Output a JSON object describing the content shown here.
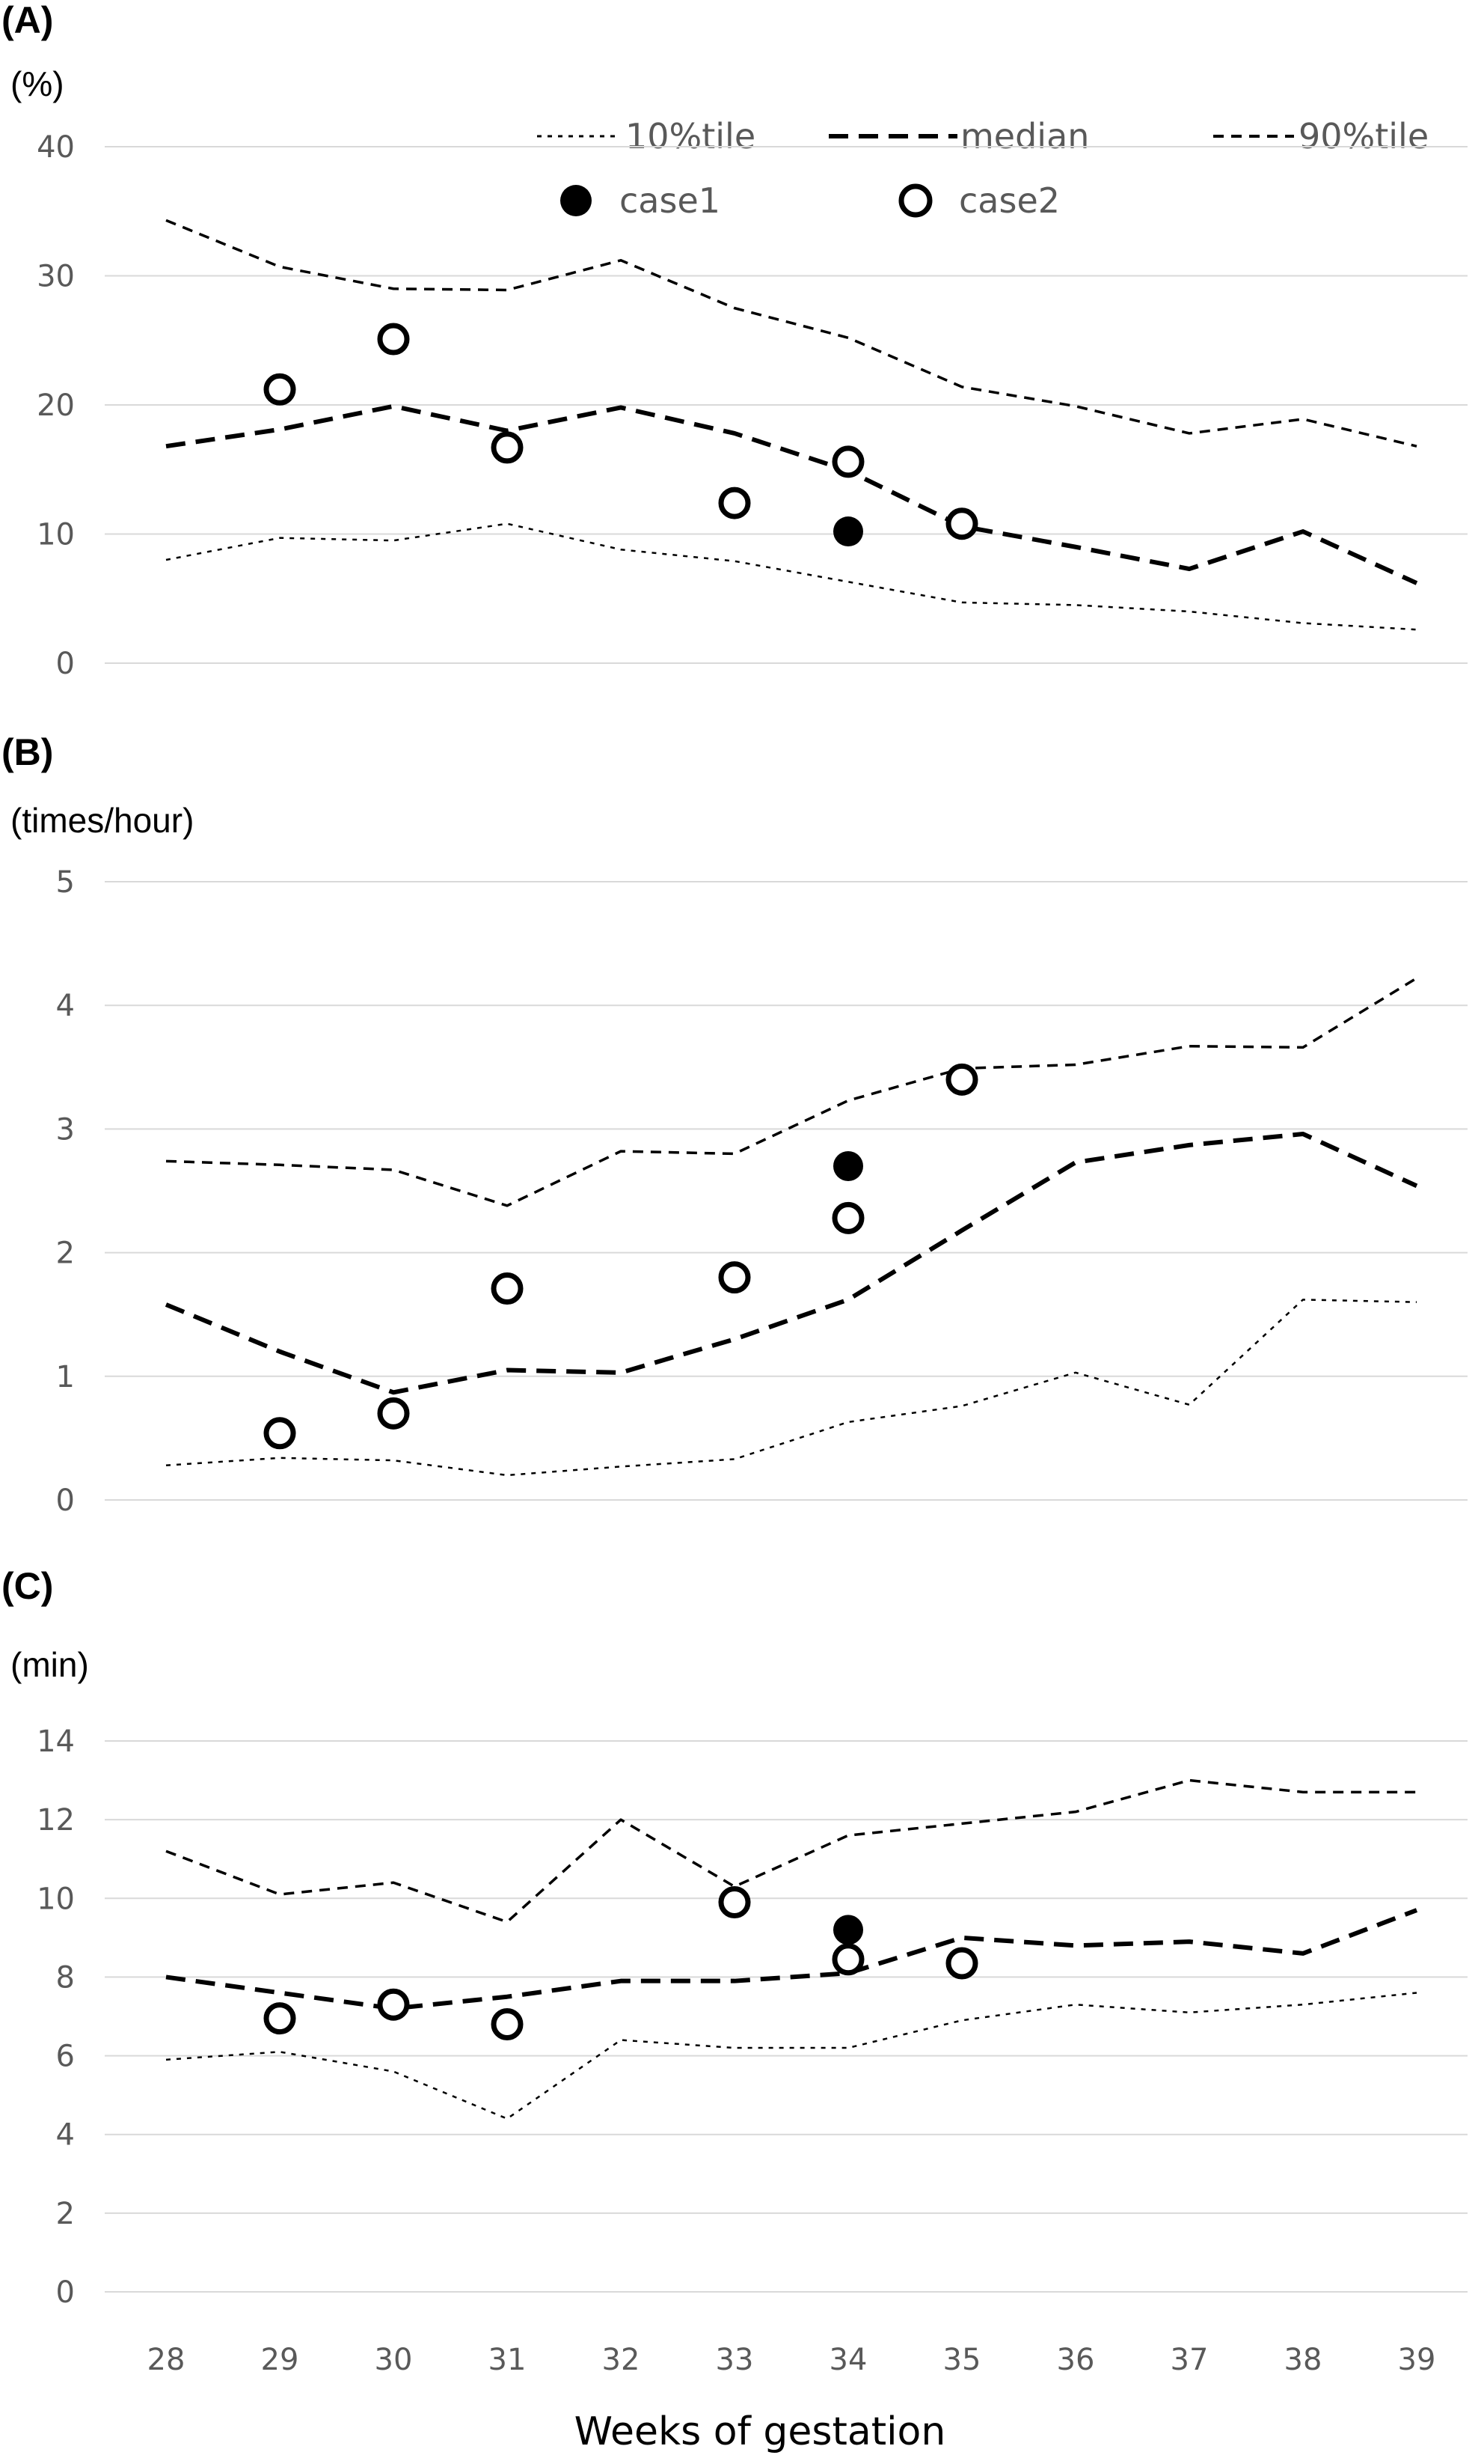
{
  "xaxis_title": "Weeks of gestation",
  "colors": {
    "line": "#000000",
    "grid": "#d9d9d9",
    "tick_text": "#595959"
  },
  "legend": {
    "p10": "10%tile",
    "median": "median",
    "p90": "90%tile",
    "case1": "case1",
    "case2": "case2"
  },
  "chart_data": [
    {
      "type": "line",
      "panel": "(A)",
      "ylabel": "(%)",
      "xlabel": "Weeks of gestation",
      "ylim": [
        0,
        40
      ],
      "yticks": [
        0,
        10,
        20,
        30,
        40
      ],
      "categories": [
        "28",
        "29",
        "30",
        "31",
        "32",
        "33",
        "34",
        "35",
        "36",
        "37",
        "38",
        "39"
      ],
      "series": [
        {
          "name": "10%tile",
          "values": [
            8,
            9.7,
            9.5,
            10.8,
            8.8,
            7.9,
            6.3,
            4.7,
            4.5,
            4,
            3.1,
            2.6
          ]
        },
        {
          "name": "median",
          "values": [
            16.8,
            18.1,
            19.9,
            18,
            19.8,
            17.8,
            14.9,
            10.6,
            9,
            7.3,
            10.2,
            6.2
          ]
        },
        {
          "name": "90%tile",
          "values": [
            34.3,
            30.7,
            29,
            28.9,
            31.2,
            27.5,
            25.2,
            21.4,
            19.9,
            17.8,
            18.9,
            16.8
          ]
        }
      ],
      "points": [
        {
          "name": "case1",
          "x": 34,
          "y": 10.2
        },
        {
          "name": "case2",
          "x": 29,
          "y": 21.2
        },
        {
          "name": "case2",
          "x": 30,
          "y": 25.1
        },
        {
          "name": "case2",
          "x": 31,
          "y": 16.7
        },
        {
          "name": "case2",
          "x": 33,
          "y": 12.4
        },
        {
          "name": "case2",
          "x": 34,
          "y": 15.6
        },
        {
          "name": "case2",
          "x": 35,
          "y": 10.8
        }
      ]
    },
    {
      "type": "line",
      "panel": "(B)",
      "ylabel": "(times/hour)",
      "xlabel": "Weeks of gestation",
      "ylim": [
        0,
        5
      ],
      "yticks": [
        0,
        1,
        2,
        3,
        4,
        5
      ],
      "categories": [
        "28",
        "29",
        "30",
        "31",
        "32",
        "33",
        "34",
        "35",
        "36",
        "37",
        "38",
        "39"
      ],
      "series": [
        {
          "name": "10%tile",
          "values": [
            0.28,
            0.34,
            0.32,
            0.2,
            0.27,
            0.33,
            0.63,
            0.76,
            1.03,
            0.77,
            1.62,
            1.6
          ]
        },
        {
          "name": "median",
          "values": [
            1.58,
            1.2,
            0.87,
            1.05,
            1.03,
            1.3,
            1.62,
            2.18,
            2.73,
            2.87,
            2.96,
            2.54
          ]
        },
        {
          "name": "90%tile",
          "values": [
            2.74,
            2.71,
            2.67,
            2.38,
            2.82,
            2.8,
            3.23,
            3.49,
            3.52,
            3.67,
            3.66,
            4.22
          ]
        }
      ],
      "points": [
        {
          "name": "case1",
          "x": 34,
          "y": 2.7
        },
        {
          "name": "case2",
          "x": 29,
          "y": 0.54
        },
        {
          "name": "case2",
          "x": 30,
          "y": 0.7
        },
        {
          "name": "case2",
          "x": 31,
          "y": 1.71
        },
        {
          "name": "case2",
          "x": 33,
          "y": 1.8
        },
        {
          "name": "case2",
          "x": 34,
          "y": 2.28
        },
        {
          "name": "case2",
          "x": 35,
          "y": 3.4
        }
      ]
    },
    {
      "type": "line",
      "panel": "(C)",
      "ylabel": "(min)",
      "xlabel": "Weeks of gestation",
      "ylim": [
        0,
        14
      ],
      "yticks": [
        0,
        2,
        4,
        6,
        8,
        10,
        12,
        14
      ],
      "categories": [
        "28",
        "29",
        "30",
        "31",
        "32",
        "33",
        "34",
        "35",
        "36",
        "37",
        "38",
        "39"
      ],
      "series": [
        {
          "name": "10%tile",
          "values": [
            5.9,
            6.1,
            5.6,
            4.4,
            6.4,
            6.2,
            6.2,
            6.9,
            7.3,
            7.1,
            7.3,
            7.6
          ]
        },
        {
          "name": "median",
          "values": [
            8,
            7.6,
            7.2,
            7.5,
            7.9,
            7.9,
            8.1,
            9,
            8.8,
            8.9,
            8.6,
            9.7
          ]
        },
        {
          "name": "90%tile",
          "values": [
            11.2,
            10.1,
            10.4,
            9.4,
            12,
            10.3,
            11.6,
            11.9,
            12.2,
            13,
            12.7,
            12.7
          ]
        }
      ],
      "points": [
        {
          "name": "case1",
          "x": 34,
          "y": 9.2
        },
        {
          "name": "case2",
          "x": 29,
          "y": 6.95
        },
        {
          "name": "case2",
          "x": 30,
          "y": 7.3
        },
        {
          "name": "case2",
          "x": 31,
          "y": 6.8
        },
        {
          "name": "case2",
          "x": 33,
          "y": 9.9
        },
        {
          "name": "case2",
          "x": 34,
          "y": 8.45
        },
        {
          "name": "case2",
          "x": 35,
          "y": 8.35
        }
      ]
    }
  ]
}
